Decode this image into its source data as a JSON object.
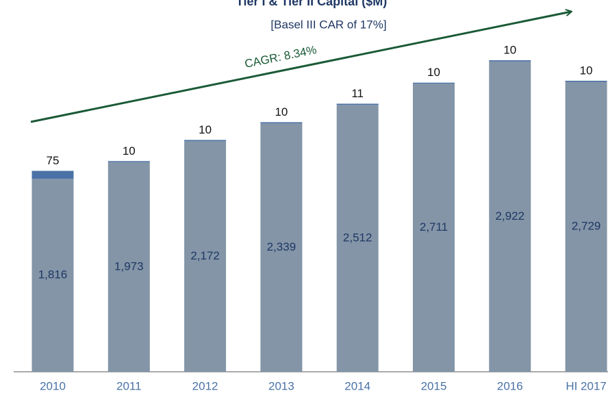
{
  "chart_data": {
    "type": "stacked_bar",
    "title": "Tier I & Tier II Capital ($M)",
    "subtitle": "[Basel III CAR of 17%]",
    "annotation": "CAGR: 8.34%",
    "categories": [
      "2010",
      "2011",
      "2012",
      "2013",
      "2014",
      "2015",
      "2016",
      "HI 2017"
    ],
    "series": [
      {
        "name": "Tier I",
        "color": "#8395a7",
        "values": [
          1816,
          1973,
          2172,
          2339,
          2512,
          2711,
          2922,
          2729
        ],
        "value_labels": [
          "1,816",
          "1,973",
          "2,172",
          "2,339",
          "2,512",
          "2,711",
          "2,922",
          "2,729"
        ]
      },
      {
        "name": "Tier II",
        "color": "#4a72a6",
        "values": [
          75,
          10,
          10,
          10,
          11,
          10,
          10,
          10
        ]
      }
    ]
  }
}
